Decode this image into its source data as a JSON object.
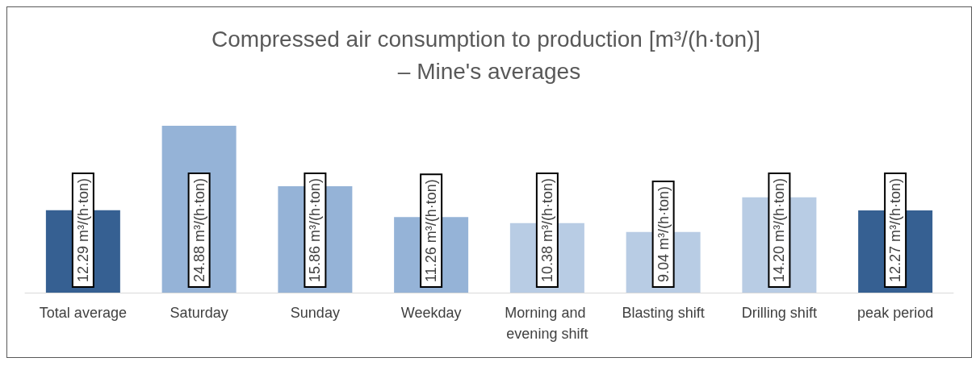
{
  "chart_data": {
    "type": "bar",
    "title": "Compressed air consumption to production [m³/(h·ton)] – Mine's averages",
    "categories": [
      "Total average",
      "Saturday",
      "Sunday",
      "Weekday",
      "Morning and evening shift",
      "Blasting shift",
      "Drilling shift",
      "peak period"
    ],
    "values": [
      12.29,
      24.88,
      15.86,
      11.26,
      10.38,
      9.04,
      14.2,
      12.27
    ],
    "colors": [
      "#366092",
      "#95b3d7",
      "#95b3d7",
      "#95b3d7",
      "#b8cce4",
      "#b8cce4",
      "#b8cce4",
      "#366092"
    ],
    "value_labels": [
      "12.29 m³/(h·ton)",
      "24.88 m³/(h·ton)",
      "15.86 m³/(h·ton)",
      "11.26 m³/(h·ton)",
      "10.38 m³/(h·ton)",
      "9.04 m³/(h·ton)",
      "14.20 m³/(h·ton)",
      "12.27 m³/(h·ton)"
    ]
  }
}
